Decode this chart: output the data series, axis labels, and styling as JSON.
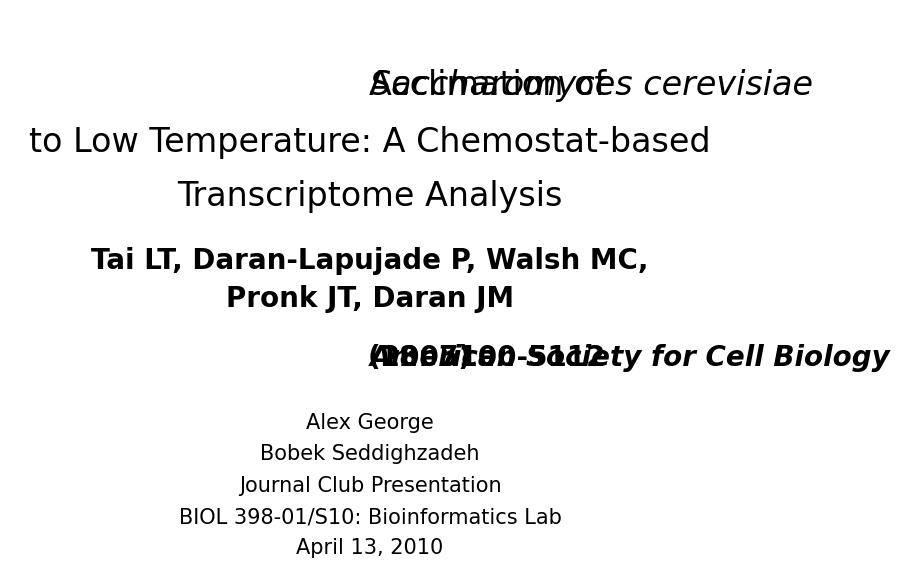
{
  "bg_color": "#ffffff",
  "title_line1_normal": "Acclimation of ",
  "title_line1_italic": "Saccharomyces cerevisiae",
  "title_line2": "to Low Temperature: A Chemostat-based",
  "title_line3": "Transcriptome Analysis",
  "authors_line1": "Tai LT, Daran-Lapujade P, Walsh MC,",
  "authors_line2": "Pronk JT, Daran JM",
  "citation_prefix": "(2007) ",
  "citation_italic": "American Society for Cell Biology",
  "citation_suffix": " 18: 5100-5112",
  "presenter_line1": "Alex George",
  "presenter_line2": "Bobek Seddighzadeh",
  "presenter_line3": "Journal Club Presentation",
  "presenter_line4": "BIOL 398-01/S10: Bioinformatics Lab",
  "presenter_line5": "April 13, 2010",
  "title_fontsize": 24,
  "authors_fontsize": 20,
  "citation_fontsize": 20,
  "presenter_fontsize": 15
}
